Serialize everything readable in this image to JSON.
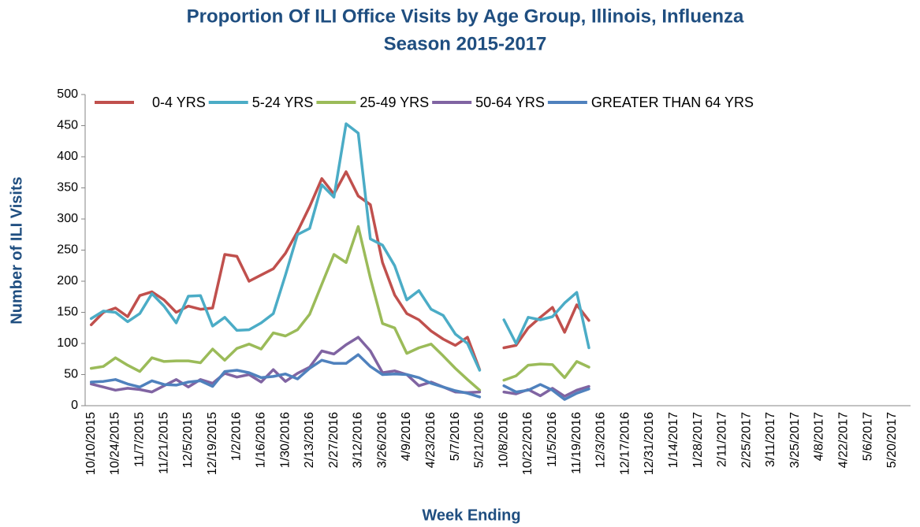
{
  "chart_data": {
    "type": "line",
    "title": [
      "Proportion Of ILI Office Visits by Age Group, Illinois, Influenza",
      "Season 2015-2017"
    ],
    "x_label": "Week Ending",
    "y_label": "Number of ILI Visits",
    "ylim": [
      0,
      500
    ],
    "yticks": [
      0,
      50,
      100,
      150,
      200,
      250,
      300,
      350,
      400,
      450,
      500
    ],
    "legend": "top",
    "categories": [
      "10/10/2015",
      null,
      "10/24/2015",
      null,
      "11/7/2015",
      null,
      "11/21/2015",
      null,
      "12/5/2015",
      null,
      "12/19/2015",
      null,
      "1/2/2016",
      null,
      "1/16/2016",
      null,
      "1/30/2016",
      null,
      "2/13/2016",
      null,
      "2/27/2016",
      null,
      "3/12/2016",
      null,
      "3/26/2016",
      null,
      "4/9/2016",
      null,
      "4/23/2016",
      null,
      "5/7/2016",
      null,
      "5/21/2016",
      null,
      "10/8/2016",
      null,
      "10/22/2016",
      null,
      "11/5/2016",
      null,
      "11/19/2016",
      null,
      "12/3/2016",
      null,
      "12/17/2016",
      null,
      "12/31/2016",
      null,
      "1/14/2017",
      null,
      "1/28/2017",
      null,
      "2/11/2017",
      null,
      "2/25/2017",
      null,
      "3/11/2017",
      null,
      "3/25/2017",
      null,
      "4/8/2017",
      null,
      "4/22/2017",
      null,
      "5/6/2017",
      null,
      "5/20/2017",
      null
    ],
    "series": [
      {
        "name": "0-4 YRS",
        "color": "#c0504d",
        "values": [
          130,
          150,
          157,
          143,
          177,
          183,
          170,
          150,
          160,
          155,
          157,
          243,
          240,
          200,
          210,
          220,
          245,
          280,
          320,
          365,
          340,
          376,
          337,
          323,
          230,
          178,
          148,
          138,
          120,
          107,
          97,
          110,
          58,
          null,
          93,
          97,
          125,
          142,
          158,
          118,
          162,
          137,
          null,
          null,
          null,
          null,
          null,
          null,
          null,
          null,
          null,
          null,
          null,
          null,
          null,
          null,
          null,
          null,
          null,
          null,
          null,
          null,
          null,
          null,
          null,
          null,
          null,
          null
        ]
      },
      {
        "name": "5-24 YRS",
        "color": "#4bacc6",
        "values": [
          140,
          152,
          150,
          135,
          148,
          180,
          160,
          133,
          176,
          177,
          128,
          142,
          121,
          122,
          133,
          148,
          210,
          275,
          285,
          355,
          335,
          453,
          438,
          268,
          258,
          225,
          170,
          185,
          155,
          145,
          115,
          100,
          57,
          null,
          138,
          100,
          142,
          138,
          143,
          165,
          182,
          93,
          null,
          null,
          null,
          null,
          null,
          null,
          null,
          null,
          null,
          null,
          null,
          null,
          null,
          null,
          null,
          null,
          null,
          null,
          null,
          null,
          null,
          null,
          null,
          null,
          null,
          null
        ]
      },
      {
        "name": "25-49 YRS",
        "color": "#9bbb59",
        "values": [
          60,
          63,
          77,
          65,
          55,
          77,
          71,
          72,
          72,
          69,
          91,
          73,
          92,
          99,
          91,
          117,
          112,
          122,
          147,
          195,
          243,
          230,
          288,
          205,
          132,
          125,
          84,
          93,
          99,
          80,
          60,
          42,
          25,
          null,
          41,
          48,
          65,
          67,
          66,
          45,
          71,
          62,
          null,
          null,
          null,
          null,
          null,
          null,
          null,
          null,
          null,
          null,
          null,
          null,
          null,
          null,
          null,
          null,
          null,
          null,
          null,
          null,
          null,
          null,
          null,
          null,
          null,
          null
        ]
      },
      {
        "name": "50-64 YRS",
        "color": "#8064a2",
        "values": [
          35,
          30,
          25,
          28,
          26,
          22,
          32,
          42,
          30,
          42,
          36,
          52,
          46,
          50,
          38,
          58,
          39,
          52,
          62,
          88,
          83,
          98,
          110,
          88,
          53,
          56,
          50,
          32,
          38,
          30,
          22,
          21,
          22,
          null,
          22,
          19,
          26,
          16,
          28,
          15,
          25,
          31,
          null,
          null,
          null,
          null,
          null,
          null,
          null,
          null,
          null,
          null,
          null,
          null,
          null,
          null,
          null,
          null,
          null,
          null,
          null,
          null,
          null,
          null,
          null,
          null,
          null,
          null
        ]
      },
      {
        "name": "GREATER THAN 64 YRS",
        "color": "#4f81bd",
        "values": [
          38,
          39,
          42,
          35,
          30,
          40,
          34,
          33,
          38,
          40,
          31,
          55,
          57,
          53,
          45,
          47,
          51,
          43,
          60,
          73,
          68,
          68,
          82,
          63,
          50,
          51,
          50,
          45,
          36,
          30,
          24,
          20,
          14,
          null,
          32,
          22,
          25,
          34,
          25,
          10,
          20,
          27,
          null,
          null,
          null,
          null,
          null,
          null,
          null,
          null,
          null,
          null,
          null,
          null,
          null,
          null,
          null,
          null,
          null,
          null,
          null,
          null,
          null,
          null,
          null,
          null,
          null,
          null
        ]
      }
    ]
  }
}
